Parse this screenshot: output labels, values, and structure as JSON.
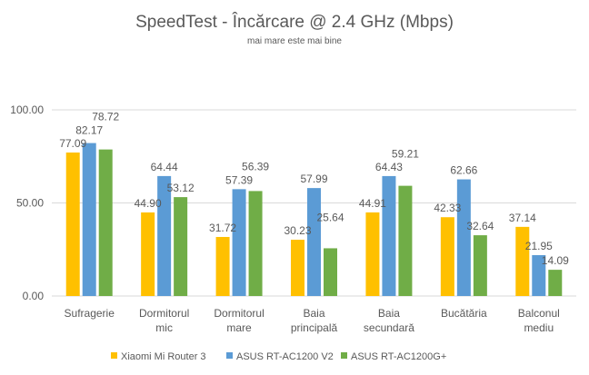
{
  "chart_data": {
    "type": "bar",
    "title": "SpeedTest - Încărcare @ 2.4 GHz (Mbps)",
    "subtitle": "mai mare este mai bine",
    "categories": [
      [
        "Sufragerie"
      ],
      [
        "Dormitorul",
        "mic"
      ],
      [
        "Dormitorul",
        "mare"
      ],
      [
        "Baia",
        "principală"
      ],
      [
        "Baia",
        "secundară"
      ],
      [
        "Bucătăria"
      ],
      [
        "Balconul",
        "mediu"
      ]
    ],
    "series": [
      {
        "name": "Xiaomi Mi Router 3",
        "color": "#FFC000",
        "values": [
          77.09,
          44.9,
          31.72,
          30.23,
          44.91,
          42.33,
          37.14
        ]
      },
      {
        "name": "ASUS RT-AC1200 V2",
        "color": "#5B9BD5",
        "values": [
          82.17,
          64.44,
          57.39,
          57.99,
          64.43,
          62.66,
          21.95
        ]
      },
      {
        "name": "ASUS RT-AC1200G+",
        "color": "#70AD47",
        "values": [
          78.72,
          53.12,
          56.39,
          25.64,
          59.21,
          32.64,
          14.09
        ]
      }
    ],
    "yticks": [
      "0.00",
      "50.00",
      "100.00"
    ],
    "ylim": [
      0,
      100
    ],
    "grid": true,
    "legend": "bottom"
  }
}
